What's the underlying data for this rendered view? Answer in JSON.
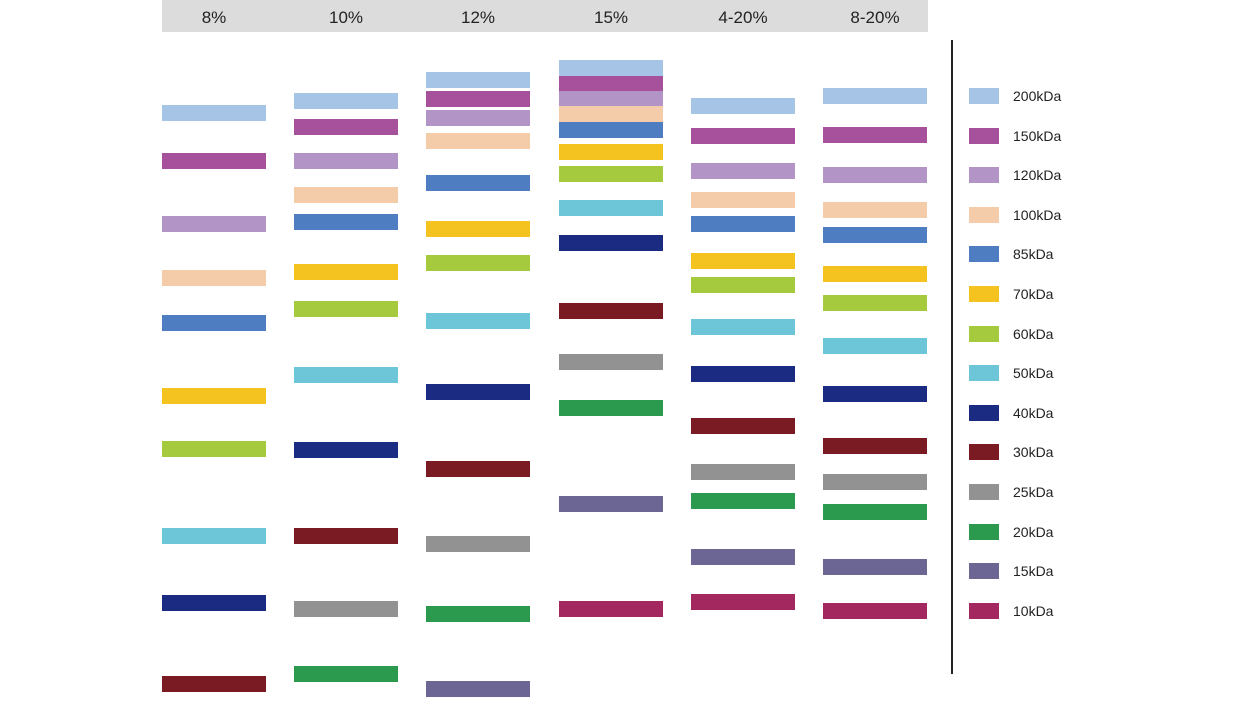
{
  "markers": [
    {
      "label": "200kDa",
      "color": "#a6c4e6"
    },
    {
      "label": "150kDa",
      "color": "#a7509c"
    },
    {
      "label": "120kDa",
      "color": "#b394c7"
    },
    {
      "label": "100kDa",
      "color": "#f5ccaa"
    },
    {
      "label": "85kDa",
      "color": "#4f7dc2"
    },
    {
      "label": "70kDa",
      "color": "#f5c31f"
    },
    {
      "label": "60kDa",
      "color": "#a6ca3d"
    },
    {
      "label": "50kDa",
      "color": "#6cc6d8"
    },
    {
      "label": "40kDa",
      "color": "#1c2b82"
    },
    {
      "label": "30kDa",
      "color": "#7a1a22"
    },
    {
      "label": "25kDa",
      "color": "#929292"
    },
    {
      "label": "20kDa",
      "color": "#2b9a4f"
    },
    {
      "label": "15kDa",
      "color": "#6b6693"
    },
    {
      "label": "10kDa",
      "color": "#a2285f"
    }
  ],
  "lanes": [
    {
      "label": "8%"
    },
    {
      "label": "10%"
    },
    {
      "label": "12%"
    },
    {
      "label": "15%"
    },
    {
      "label": "4-20%"
    },
    {
      "label": "8-20%"
    }
  ]
}
